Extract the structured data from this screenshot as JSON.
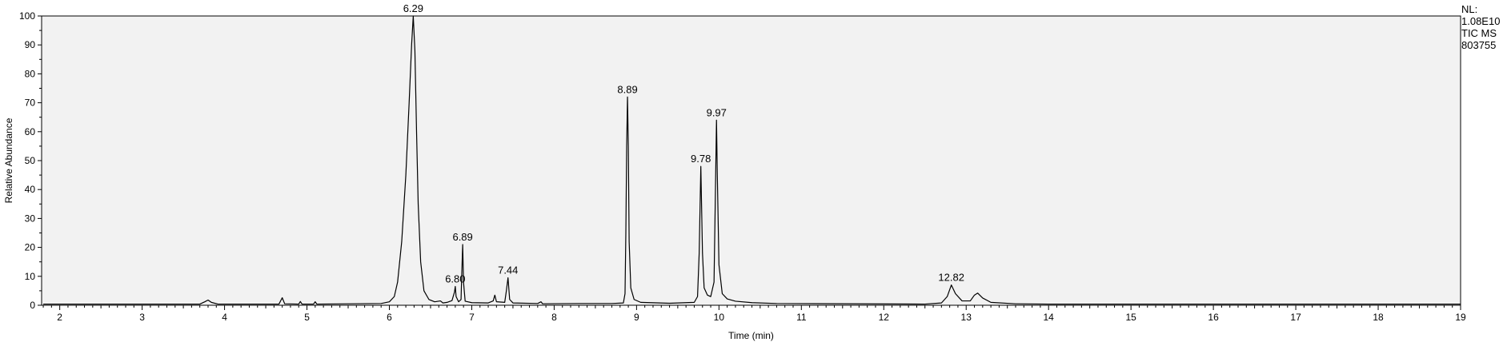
{
  "chart_data": {
    "type": "line",
    "xlabel": "Time (min)",
    "ylabel": "Relative Abundance",
    "xlim": [
      1.78,
      19.0
    ],
    "ylim": [
      0,
      100
    ],
    "x_ticks": [
      2,
      3,
      4,
      5,
      6,
      7,
      8,
      9,
      10,
      11,
      12,
      13,
      14,
      15,
      16,
      17,
      18,
      19
    ],
    "y_ticks": [
      0,
      10,
      20,
      30,
      40,
      50,
      60,
      70,
      80,
      90,
      100
    ],
    "grid": false,
    "series": [
      {
        "color": "#000000",
        "points": [
          [
            1.8,
            0.4
          ],
          [
            2.5,
            0.4
          ],
          [
            3.7,
            0.4
          ],
          [
            3.76,
            1.2
          ],
          [
            3.8,
            1.8
          ],
          [
            3.84,
            1.0
          ],
          [
            3.92,
            0.4
          ],
          [
            4.66,
            0.4
          ],
          [
            4.7,
            2.6
          ],
          [
            4.73,
            0.5
          ],
          [
            4.9,
            0.4
          ],
          [
            4.92,
            1.3
          ],
          [
            4.94,
            0.4
          ],
          [
            5.08,
            0.4
          ],
          [
            5.1,
            1.2
          ],
          [
            5.12,
            0.4
          ],
          [
            5.9,
            0.6
          ],
          [
            6.0,
            1.2
          ],
          [
            6.06,
            3.0
          ],
          [
            6.1,
            8.0
          ],
          [
            6.15,
            22.0
          ],
          [
            6.2,
            45.0
          ],
          [
            6.24,
            70.0
          ],
          [
            6.27,
            90.0
          ],
          [
            6.29,
            100.0
          ],
          [
            6.31,
            88.0
          ],
          [
            6.33,
            60.0
          ],
          [
            6.35,
            35.0
          ],
          [
            6.38,
            15.0
          ],
          [
            6.42,
            5.0
          ],
          [
            6.48,
            2.0
          ],
          [
            6.55,
            1.2
          ],
          [
            6.62,
            1.5
          ],
          [
            6.65,
            0.8
          ],
          [
            6.7,
            1.0
          ],
          [
            6.76,
            1.6
          ],
          [
            6.79,
            4.5
          ],
          [
            6.8,
            6.5
          ],
          [
            6.81,
            3.0
          ],
          [
            6.84,
            1.2
          ],
          [
            6.87,
            2.0
          ],
          [
            6.88,
            12.0
          ],
          [
            6.89,
            21.0
          ],
          [
            6.9,
            8.0
          ],
          [
            6.92,
            1.4
          ],
          [
            7.0,
            0.9
          ],
          [
            7.2,
            0.8
          ],
          [
            7.26,
            1.5
          ],
          [
            7.28,
            3.5
          ],
          [
            7.3,
            1.2
          ],
          [
            7.4,
            1.0
          ],
          [
            7.42,
            5.0
          ],
          [
            7.44,
            9.5
          ],
          [
            7.46,
            2.0
          ],
          [
            7.5,
            0.8
          ],
          [
            7.8,
            0.6
          ],
          [
            7.84,
            1.2
          ],
          [
            7.86,
            0.5
          ],
          [
            8.3,
            0.6
          ],
          [
            8.7,
            0.6
          ],
          [
            8.84,
            0.8
          ],
          [
            8.86,
            4.0
          ],
          [
            8.87,
            25.0
          ],
          [
            8.88,
            55.0
          ],
          [
            8.89,
            72.0
          ],
          [
            8.9,
            55.0
          ],
          [
            8.91,
            22.0
          ],
          [
            8.93,
            6.0
          ],
          [
            8.97,
            2.0
          ],
          [
            9.05,
            1.0
          ],
          [
            9.4,
            0.7
          ],
          [
            9.7,
            1.0
          ],
          [
            9.74,
            3.0
          ],
          [
            9.76,
            18.0
          ],
          [
            9.78,
            48.0
          ],
          [
            9.8,
            18.0
          ],
          [
            9.82,
            6.0
          ],
          [
            9.86,
            3.5
          ],
          [
            9.9,
            3.0
          ],
          [
            9.94,
            8.0
          ],
          [
            9.96,
            45.0
          ],
          [
            9.97,
            64.0
          ],
          [
            9.98,
            45.0
          ],
          [
            10.0,
            14.0
          ],
          [
            10.04,
            4.0
          ],
          [
            10.1,
            2.2
          ],
          [
            10.2,
            1.4
          ],
          [
            10.4,
            0.9
          ],
          [
            10.7,
            0.6
          ],
          [
            12.5,
            0.4
          ],
          [
            12.7,
            0.8
          ],
          [
            12.77,
            3.0
          ],
          [
            12.82,
            7.0
          ],
          [
            12.87,
            4.0
          ],
          [
            12.95,
            1.5
          ],
          [
            13.05,
            1.5
          ],
          [
            13.1,
            3.5
          ],
          [
            13.14,
            4.2
          ],
          [
            13.2,
            2.5
          ],
          [
            13.3,
            1.0
          ],
          [
            13.6,
            0.5
          ],
          [
            14.0,
            0.4
          ],
          [
            19.0,
            0.4
          ]
        ]
      }
    ],
    "peak_labels": [
      {
        "x": 6.29,
        "y": 100,
        "text": "6.29"
      },
      {
        "x": 6.8,
        "y": 6.5,
        "text": "6.80"
      },
      {
        "x": 6.89,
        "y": 21,
        "text": "6.89"
      },
      {
        "x": 7.44,
        "y": 9.5,
        "text": "7.44"
      },
      {
        "x": 8.89,
        "y": 72,
        "text": "8.89"
      },
      {
        "x": 9.78,
        "y": 48,
        "text": "9.78"
      },
      {
        "x": 9.97,
        "y": 64,
        "text": "9.97"
      },
      {
        "x": 12.82,
        "y": 7,
        "text": "12.82"
      }
    ],
    "background": "#f2f2f2",
    "line_color": "#000000"
  },
  "info": {
    "nl_label": "NL:",
    "nl_value": "1.08E10",
    "trace": "TIC  MS",
    "id": "803755"
  }
}
